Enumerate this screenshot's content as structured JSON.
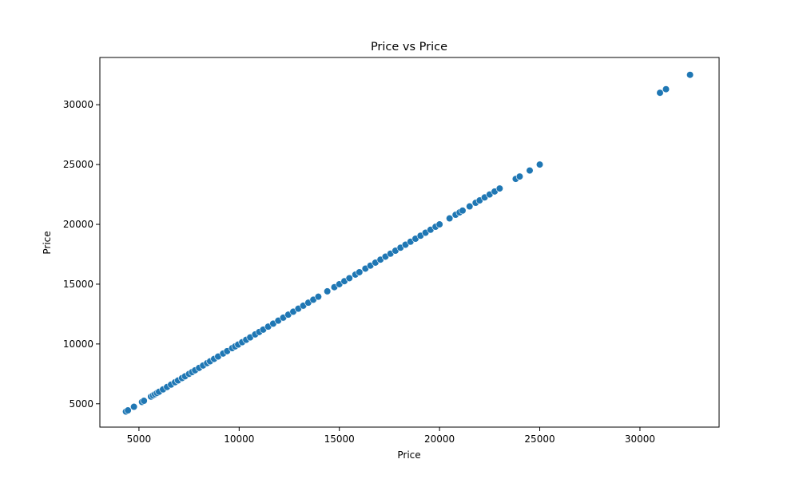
{
  "chart_data": {
    "type": "scatter",
    "title": "Price vs Price",
    "xlabel": "Price",
    "ylabel": "Price",
    "xlim": [
      3050,
      33950
    ],
    "ylim": [
      3050,
      33950
    ],
    "xticks": [
      5000,
      10000,
      15000,
      20000,
      25000,
      30000
    ],
    "yticks": [
      5000,
      10000,
      15000,
      20000,
      25000,
      30000
    ],
    "grid": false,
    "legend": "none",
    "marker_color": "#1f77b4",
    "points": [
      [
        4350,
        4350
      ],
      [
        4450,
        4450
      ],
      [
        4750,
        4750
      ],
      [
        5150,
        5150
      ],
      [
        5250,
        5250
      ],
      [
        5600,
        5600
      ],
      [
        5700,
        5700
      ],
      [
        5800,
        5800
      ],
      [
        5900,
        5900
      ],
      [
        6000,
        6000
      ],
      [
        6200,
        6200
      ],
      [
        6400,
        6400
      ],
      [
        6600,
        6600
      ],
      [
        6800,
        6800
      ],
      [
        6950,
        6950
      ],
      [
        7150,
        7150
      ],
      [
        7300,
        7300
      ],
      [
        7500,
        7500
      ],
      [
        7650,
        7650
      ],
      [
        7800,
        7800
      ],
      [
        8000,
        8000
      ],
      [
        8200,
        8200
      ],
      [
        8400,
        8400
      ],
      [
        8550,
        8550
      ],
      [
        8750,
        8750
      ],
      [
        8950,
        8950
      ],
      [
        9200,
        9200
      ],
      [
        9400,
        9400
      ],
      [
        9650,
        9650
      ],
      [
        9800,
        9800
      ],
      [
        9950,
        9950
      ],
      [
        10150,
        10150
      ],
      [
        10350,
        10350
      ],
      [
        10550,
        10550
      ],
      [
        10800,
        10800
      ],
      [
        11000,
        11000
      ],
      [
        11200,
        11200
      ],
      [
        11450,
        11450
      ],
      [
        11700,
        11700
      ],
      [
        11950,
        11950
      ],
      [
        12200,
        12200
      ],
      [
        12450,
        12450
      ],
      [
        12700,
        12700
      ],
      [
        12950,
        12950
      ],
      [
        13200,
        13200
      ],
      [
        13450,
        13450
      ],
      [
        13700,
        13700
      ],
      [
        13950,
        13950
      ],
      [
        14400,
        14400
      ],
      [
        14750,
        14750
      ],
      [
        15000,
        15000
      ],
      [
        15250,
        15250
      ],
      [
        15500,
        15500
      ],
      [
        15800,
        15800
      ],
      [
        16000,
        16000
      ],
      [
        16300,
        16300
      ],
      [
        16550,
        16550
      ],
      [
        16800,
        16800
      ],
      [
        17050,
        17050
      ],
      [
        17300,
        17300
      ],
      [
        17550,
        17550
      ],
      [
        17800,
        17800
      ],
      [
        18050,
        18050
      ],
      [
        18300,
        18300
      ],
      [
        18550,
        18550
      ],
      [
        18800,
        18800
      ],
      [
        19050,
        19050
      ],
      [
        19300,
        19300
      ],
      [
        19550,
        19550
      ],
      [
        19800,
        19800
      ],
      [
        20000,
        20000
      ],
      [
        20500,
        20500
      ],
      [
        20800,
        20800
      ],
      [
        21000,
        21000
      ],
      [
        21150,
        21150
      ],
      [
        21500,
        21500
      ],
      [
        21800,
        21800
      ],
      [
        22000,
        22000
      ],
      [
        22250,
        22250
      ],
      [
        22500,
        22500
      ],
      [
        22750,
        22750
      ],
      [
        23000,
        23000
      ],
      [
        23800,
        23800
      ],
      [
        24000,
        24000
      ],
      [
        24500,
        24500
      ],
      [
        25000,
        25000
      ],
      [
        31000,
        31000
      ],
      [
        31300,
        31300
      ],
      [
        32500,
        32500
      ]
    ]
  }
}
